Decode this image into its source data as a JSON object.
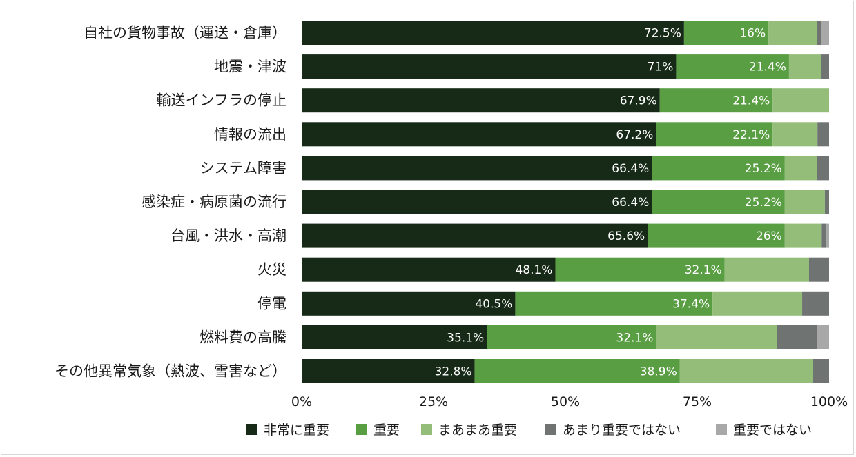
{
  "chart_data": {
    "type": "bar",
    "orientation": "horizontal",
    "stacked": true,
    "categories": [
      "自社の貨物事故（運送・倉庫）",
      "地震・津波",
      "輸送インフラの停止",
      "情報の流出",
      "システム障害",
      "感染症・病原菌の流行",
      "台風・洪水・高潮",
      "火災",
      "停電",
      "燃料費の高騰",
      "その他異常気象（熱波、雪害など）"
    ],
    "series": [
      {
        "name": "非常に重要",
        "color": "#172a17",
        "values": [
          72.5,
          71,
          67.9,
          67.2,
          66.4,
          66.4,
          65.6,
          48.1,
          40.5,
          35.1,
          32.8
        ],
        "labels": [
          "72.5%",
          "71%",
          "67.9%",
          "67.2%",
          "66.4%",
          "66.4%",
          "65.6%",
          "48.1%",
          "40.5%",
          "35.1%",
          "32.8%"
        ]
      },
      {
        "name": "重要",
        "color": "#5a9e43",
        "values": [
          16,
          21.4,
          21.4,
          22.1,
          25.2,
          25.2,
          26,
          32.1,
          37.4,
          32.1,
          38.9
        ],
        "labels": [
          "16%",
          "21.4%",
          "21.4%",
          "22.1%",
          "25.2%",
          "25.2%",
          "26%",
          "32.1%",
          "37.4%",
          "32.1%",
          "38.9%"
        ]
      },
      {
        "name": "まあまあ重要",
        "color": "#93bd79",
        "values": [
          9.2,
          6.1,
          10.7,
          8.5,
          6.1,
          7.6,
          7.0,
          16.0,
          17.0,
          22.9,
          25.2
        ]
      },
      {
        "name": "あまり重要ではない",
        "color": "#6f7371",
        "values": [
          0.8,
          1.5,
          0,
          2.2,
          2.3,
          0.8,
          0.8,
          3.8,
          5.1,
          7.6,
          3.1
        ]
      },
      {
        "name": "重要ではない",
        "color": "#a8a8a8",
        "values": [
          1.5,
          0,
          0,
          0,
          0,
          0,
          0.6,
          0,
          0,
          2.3,
          0
        ]
      }
    ],
    "xlim": [
      0,
      100
    ],
    "xticks": [
      "0%",
      "25%",
      "50%",
      "75%",
      "100%"
    ],
    "legend_position": "bottom",
    "grid": false
  }
}
